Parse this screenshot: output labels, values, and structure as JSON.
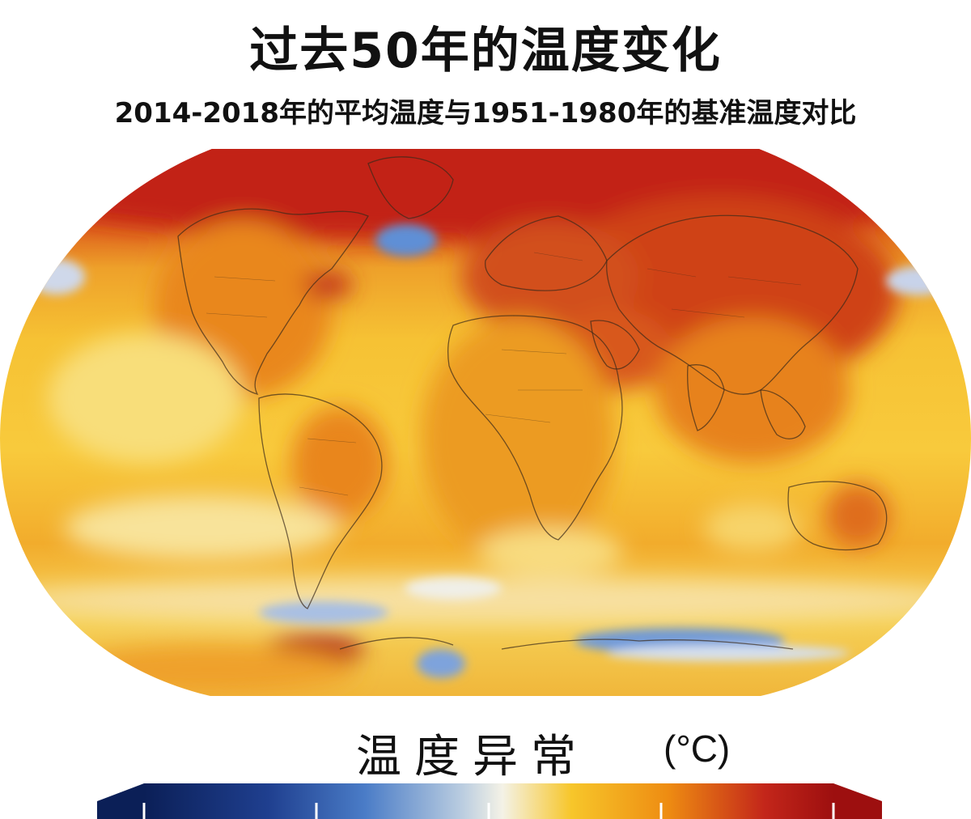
{
  "title": "过去50年的温度变化",
  "subtitle": "2014-2018年的平均温度与1951-1980年的基准温度对比",
  "legend": {
    "title": "温度异常",
    "unit": "(°C)"
  },
  "colors": {
    "deep_blue": "#0b1f57",
    "mid_blue": "#4a7cc7",
    "neutral": "#f4f2e6",
    "yellow": "#f7c62a",
    "orange": "#ee8c12",
    "red": "#c3261a",
    "dark_red": "#9d0f0f"
  }
}
